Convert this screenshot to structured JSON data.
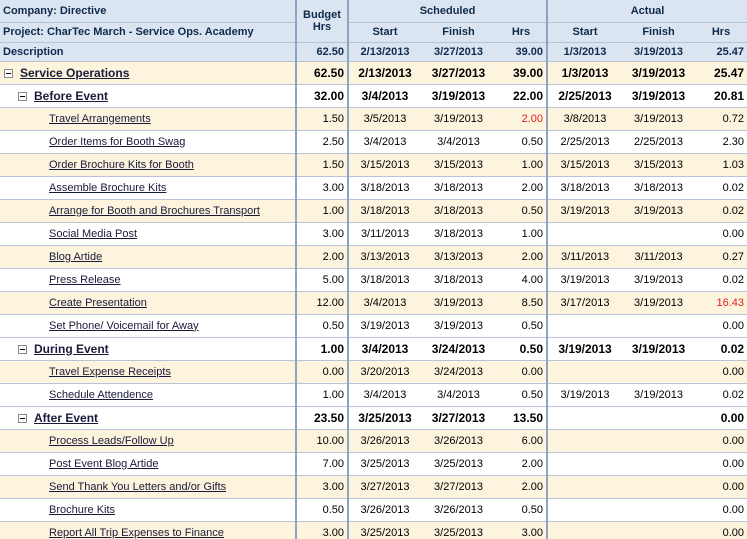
{
  "header": {
    "company": "Company: Directive",
    "project": "Project: CharTec March - Service Ops. Academy",
    "description": "Description",
    "budget_label_line1": "Budget",
    "budget_label_line2": "Hrs",
    "scheduled": "Scheduled",
    "actual": "Actual",
    "start": "Start",
    "finish": "Finish",
    "hrs": "Hrs",
    "totals": {
      "budget": "62.50",
      "sched_start": "2/13/2013",
      "sched_finish": "3/27/2013",
      "sched_hrs": "39.00",
      "act_start": "1/3/2013",
      "act_finish": "3/19/2013",
      "act_hrs": "25.47"
    }
  },
  "rows": [
    {
      "type": "group0",
      "name": "Service Operations",
      "budget": "62.50",
      "ss": "2/13/2013",
      "sf": "3/27/2013",
      "sh": "39.00",
      "as": "1/3/2013",
      "af": "3/19/2013",
      "ah": "25.47"
    },
    {
      "type": "group1",
      "name": "Before Event",
      "budget": "32.00",
      "ss": "3/4/2013",
      "sf": "3/19/2013",
      "sh": "22.00",
      "as": "2/25/2013",
      "af": "3/19/2013",
      "ah": "20.81"
    },
    {
      "type": "task",
      "name": "Travel Arrangements",
      "budget": "1.50",
      "ss": "3/5/2013",
      "sf": "3/19/2013",
      "sh": "2.00",
      "as": "3/8/2013",
      "af": "3/19/2013",
      "ah": "0.72",
      "sh_red": true
    },
    {
      "type": "task",
      "name": "Order Items for Booth Swag",
      "budget": "2.50",
      "ss": "3/4/2013",
      "sf": "3/4/2013",
      "sh": "0.50",
      "as": "2/25/2013",
      "af": "2/25/2013",
      "ah": "2.30"
    },
    {
      "type": "task",
      "name": "Order Brochure Kits for Booth",
      "budget": "1.50",
      "ss": "3/15/2013",
      "sf": "3/15/2013",
      "sh": "1.00",
      "as": "3/15/2013",
      "af": "3/15/2013",
      "ah": "1.03"
    },
    {
      "type": "task",
      "name": "Assemble Brochure Kits",
      "budget": "3.00",
      "ss": "3/18/2013",
      "sf": "3/18/2013",
      "sh": "2.00",
      "as": "3/18/2013",
      "af": "3/18/2013",
      "ah": "0.02"
    },
    {
      "type": "task",
      "name": "Arrange for Booth and Brochures Transport",
      "budget": "1.00",
      "ss": "3/18/2013",
      "sf": "3/18/2013",
      "sh": "0.50",
      "as": "3/19/2013",
      "af": "3/19/2013",
      "ah": "0.02"
    },
    {
      "type": "task",
      "name": "Social Media Post",
      "budget": "3.00",
      "ss": "3/11/2013",
      "sf": "3/18/2013",
      "sh": "1.00",
      "as": "",
      "af": "",
      "ah": "0.00"
    },
    {
      "type": "task",
      "name": "Blog Artide",
      "budget": "2.00",
      "ss": "3/13/2013",
      "sf": "3/13/2013",
      "sh": "2.00",
      "as": "3/11/2013",
      "af": "3/11/2013",
      "ah": "0.27"
    },
    {
      "type": "task",
      "name": "Press Release",
      "budget": "5.00",
      "ss": "3/18/2013",
      "sf": "3/18/2013",
      "sh": "4.00",
      "as": "3/19/2013",
      "af": "3/19/2013",
      "ah": "0.02"
    },
    {
      "type": "task",
      "name": "Create Presentation",
      "budget": "12.00",
      "ss": "3/4/2013",
      "sf": "3/19/2013",
      "sh": "8.50",
      "as": "3/17/2013",
      "af": "3/19/2013",
      "ah": "16.43",
      "ah_red": true
    },
    {
      "type": "task",
      "name": "Set Phone/ Voicemail for Away",
      "budget": "0.50",
      "ss": "3/19/2013",
      "sf": "3/19/2013",
      "sh": "0.50",
      "as": "",
      "af": "",
      "ah": "0.00"
    },
    {
      "type": "group1",
      "name": "During Event",
      "budget": "1.00",
      "ss": "3/4/2013",
      "sf": "3/24/2013",
      "sh": "0.50",
      "as": "3/19/2013",
      "af": "3/19/2013",
      "ah": "0.02"
    },
    {
      "type": "task",
      "name": "Travel Expense Receipts",
      "budget": "0.00",
      "ss": "3/20/2013",
      "sf": "3/24/2013",
      "sh": "0.00",
      "as": "",
      "af": "",
      "ah": "0.00"
    },
    {
      "type": "task",
      "name": "Schedule Attendence",
      "budget": "1.00",
      "ss": "3/4/2013",
      "sf": "3/4/2013",
      "sh": "0.50",
      "as": "3/19/2013",
      "af": "3/19/2013",
      "ah": "0.02"
    },
    {
      "type": "group1",
      "name": "After Event",
      "budget": "23.50",
      "ss": "3/25/2013",
      "sf": "3/27/2013",
      "sh": "13.50",
      "as": "",
      "af": "",
      "ah": "0.00"
    },
    {
      "type": "task",
      "name": "Process Leads/Follow Up",
      "budget": "10.00",
      "ss": "3/26/2013",
      "sf": "3/26/2013",
      "sh": "6.00",
      "as": "",
      "af": "",
      "ah": "0.00"
    },
    {
      "type": "task",
      "name": "Post Event Blog Artide",
      "budget": "7.00",
      "ss": "3/25/2013",
      "sf": "3/25/2013",
      "sh": "2.00",
      "as": "",
      "af": "",
      "ah": "0.00"
    },
    {
      "type": "task",
      "name": "Send Thank You Letters and/or Gifts",
      "budget": "3.00",
      "ss": "3/27/2013",
      "sf": "3/27/2013",
      "sh": "2.00",
      "as": "",
      "af": "",
      "ah": "0.00"
    },
    {
      "type": "task",
      "name": "Brochure Kits",
      "budget": "0.50",
      "ss": "3/26/2013",
      "sf": "3/26/2013",
      "sh": "0.50",
      "as": "",
      "af": "",
      "ah": "0.00"
    },
    {
      "type": "task",
      "name": "Report All Trip Expenses to Finance",
      "budget": "3.00",
      "ss": "3/25/2013",
      "sf": "3/25/2013",
      "sh": "3.00",
      "as": "",
      "af": "",
      "ah": "0.00"
    }
  ]
}
